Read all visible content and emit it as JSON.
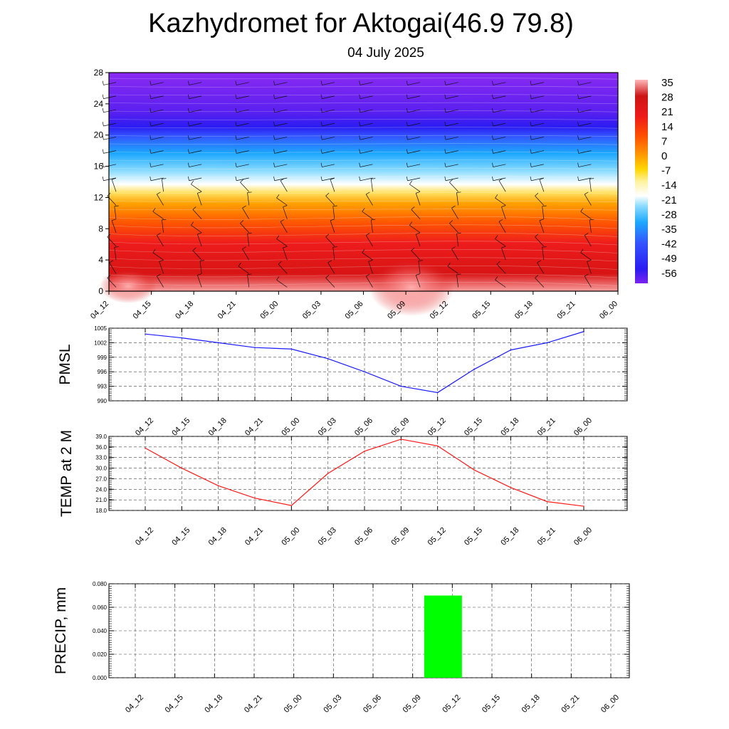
{
  "title": "Kazhydromet for Aktogai(46.9 79.8)",
  "subtitle": "04 July 2025",
  "chart_data": [
    {
      "type": "heatmap",
      "name": "vertical cross-section temperature with wind barbs",
      "x_categories": [
        "04_12",
        "04_15",
        "04_18",
        "04_21",
        "05_00",
        "05_03",
        "05_06",
        "05_09",
        "05_12",
        "05_15",
        "05_18",
        "05_21",
        "06_00"
      ],
      "ylim": [
        0,
        28
      ],
      "y_ticks": [
        "0",
        "4",
        "8",
        "12",
        "16",
        "20",
        "24",
        "28"
      ],
      "colorbar": {
        "labels": [
          "35",
          "28",
          "21",
          "14",
          "7",
          "0",
          "-7",
          "-14",
          "-21",
          "-28",
          "-35",
          "-42",
          "-49",
          "-56"
        ],
        "range": [
          -63,
          42
        ],
        "colors": [
          "#7b22f0",
          "#2a1cf2",
          "#3355ff",
          "#1ca8ff",
          "#8cdcff",
          "#ffffff",
          "#fff2a0",
          "#ffd700",
          "#ff9a00",
          "#ff5200",
          "#ee1a1a",
          "#cc1515",
          "#f07070",
          "#ffb8b8"
        ]
      }
    },
    {
      "type": "line",
      "ylabel": "PMSL",
      "categories": [
        "04_12",
        "04_15",
        "04_18",
        "04_21",
        "05_00",
        "05_03",
        "05_06",
        "05_09",
        "05_12",
        "05_15",
        "05_18",
        "05_21",
        "06_00"
      ],
      "series": [
        {
          "values": [
            1003.8,
            1003.0,
            1002.0,
            1001.0,
            1000.7,
            998.7,
            996.0,
            993.0,
            991.7,
            996.5,
            1000.5,
            1002.0,
            1004.3
          ],
          "color": "#1a1aff"
        }
      ],
      "ylim": [
        990,
        1005
      ],
      "y_ticks": [
        "990",
        "993",
        "996",
        "999",
        "1002",
        "1005"
      ],
      "grid": true
    },
    {
      "type": "line",
      "ylabel": "TEMP at 2 M",
      "categories": [
        "04_12",
        "04_15",
        "04_18",
        "04_21",
        "05_00",
        "05_03",
        "05_06",
        "05_09",
        "05_12",
        "05_15",
        "05_18",
        "05_21",
        "06_00"
      ],
      "series": [
        {
          "values": [
            35.7,
            30.0,
            25.0,
            21.5,
            19.4,
            28.5,
            34.8,
            38.2,
            36.3,
            29.5,
            24.5,
            20.5,
            19.2
          ],
          "color": "#ff1a1a"
        }
      ],
      "ylim": [
        18,
        39
      ],
      "y_ticks": [
        "18.0",
        "21.0",
        "24.0",
        "27.0",
        "30.0",
        "33.0",
        "36.0",
        "39.0"
      ],
      "grid": true
    },
    {
      "type": "bar",
      "ylabel": "PRECIP, mm",
      "categories": [
        "04_12",
        "04_15",
        "04_18",
        "04_21",
        "05_00",
        "05_03",
        "05_06",
        "05_09",
        "05_12",
        "05_15",
        "05_18",
        "05_21",
        "06_00"
      ],
      "values": [
        0,
        0,
        0,
        0,
        0,
        0,
        0,
        0,
        0.07,
        0,
        0,
        0,
        0
      ],
      "bar_color": "#00ff00",
      "ylim": [
        0,
        0.08
      ],
      "y_ticks": [
        "0.000",
        "0.020",
        "0.040",
        "0.060",
        "0.080"
      ],
      "grid": true
    }
  ]
}
